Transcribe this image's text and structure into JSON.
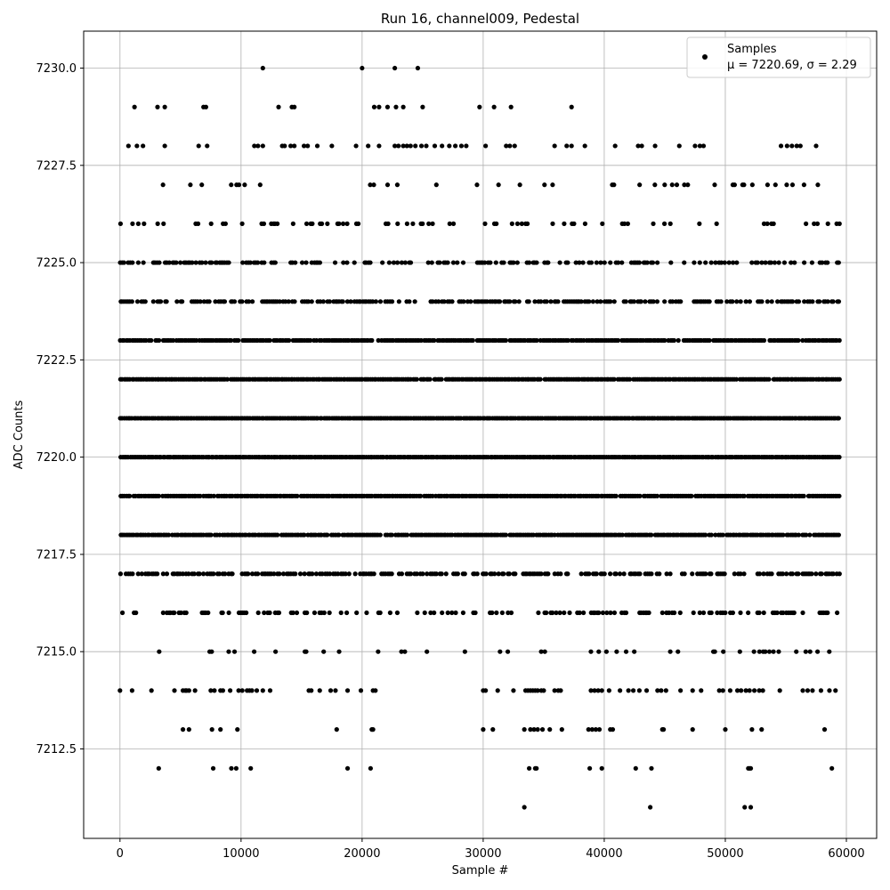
{
  "chart_data": {
    "type": "scatter",
    "title": "Run 16, channel009, Pedestal",
    "xlabel": "Sample #",
    "ylabel": "ADC Counts",
    "xlim": [
      -3000,
      62500
    ],
    "ylim": [
      7210.2,
      7230.95
    ],
    "x_ticks": [
      0,
      10000,
      20000,
      30000,
      40000,
      50000,
      60000
    ],
    "y_ticks": [
      7212.5,
      7215.0,
      7217.5,
      7220.0,
      7222.5,
      7225.0,
      7227.5,
      7230.0
    ],
    "grid": true,
    "legend_position": "top-right",
    "marker_color": "#000000",
    "series": [
      {
        "name": "Samples",
        "x_range": [
          0,
          59500
        ],
        "bands": [
          {
            "y": 7211,
            "points": [
              33400,
              43800,
              51600,
              52100
            ]
          },
          {
            "y": 7212,
            "points": [
              3200,
              7700,
              9200,
              9600,
              10800,
              18800,
              20700,
              33800,
              34300,
              34400,
              38800,
              39800,
              42600,
              43900,
              51900,
              52000,
              52100,
              58800
            ]
          },
          {
            "y": 7213,
            "points": [
              5200,
              5700,
              7600,
              8300,
              9700,
              17900,
              20800,
              20900,
              30000,
              30800,
              33400,
              33900,
              34200,
              34500,
              34900,
              35500,
              36500,
              38700,
              39000,
              39300,
              39600,
              40500,
              40700,
              44800,
              44900,
              47300,
              50000,
              52200,
              53000,
              58200
            ]
          },
          {
            "y": 7214,
            "points": [
              0,
              1000,
              2600,
              4500,
              5200,
              5400,
              5500,
              5700,
              6200,
              7500,
              7800,
              8300,
              8500,
              9100,
              9800,
              10100,
              10500,
              10700,
              10900,
              11300,
              11800,
              12400,
              15600,
              15800,
              16500,
              17400,
              17800,
              18800,
              19900,
              20900,
              21100,
              30000,
              30200,
              31200,
              32500,
              33500,
              33700,
              33900,
              34100,
              34300,
              34500,
              34800,
              35000,
              35900,
              36200,
              36400,
              38900,
              39200,
              39500,
              39800,
              40400,
              41300,
              42000,
              42400,
              42900,
              43500,
              44400,
              44700,
              45100,
              46300,
              47300,
              48000,
              49500,
              49800,
              50400,
              51000,
              51300,
              51700,
              52000,
              52400,
              52800,
              53100,
              54500,
              56400,
              56800,
              57200,
              57900,
              58600,
              59100
            ]
          }
        ],
        "dense_levels": [
          {
            "y": 7215,
            "density": 0.12
          },
          {
            "y": 7216,
            "density": 0.35
          },
          {
            "y": 7217,
            "density": 0.62
          },
          {
            "y": 7218,
            "density": 0.92
          },
          {
            "y": 7219,
            "density": 0.97
          },
          {
            "y": 7220,
            "density": 1.0
          },
          {
            "y": 7221,
            "density": 1.0
          },
          {
            "y": 7222,
            "density": 0.97
          },
          {
            "y": 7223,
            "density": 0.92
          },
          {
            "y": 7224,
            "density": 0.6
          },
          {
            "y": 7225,
            "density": 0.4
          },
          {
            "y": 7226,
            "density": 0.22
          },
          {
            "y": 7227,
            "density": 0.1
          }
        ],
        "outliers": [
          {
            "x": 700,
            "y": 7228
          },
          {
            "x": 1400,
            "y": 7228
          },
          {
            "x": 1900,
            "y": 7228
          },
          {
            "x": 3700,
            "y": 7228
          },
          {
            "x": 6500,
            "y": 7228
          },
          {
            "x": 7200,
            "y": 7228
          },
          {
            "x": 11100,
            "y": 7228
          },
          {
            "x": 11400,
            "y": 7228
          },
          {
            "x": 11800,
            "y": 7228
          },
          {
            "x": 13400,
            "y": 7228
          },
          {
            "x": 13600,
            "y": 7228
          },
          {
            "x": 14100,
            "y": 7228
          },
          {
            "x": 14400,
            "y": 7228
          },
          {
            "x": 15200,
            "y": 7228
          },
          {
            "x": 15500,
            "y": 7228
          },
          {
            "x": 16300,
            "y": 7228
          },
          {
            "x": 17500,
            "y": 7228
          },
          {
            "x": 19500,
            "y": 7228
          },
          {
            "x": 20500,
            "y": 7228
          },
          {
            "x": 21400,
            "y": 7228
          },
          {
            "x": 22700,
            "y": 7228
          },
          {
            "x": 23000,
            "y": 7228
          },
          {
            "x": 23400,
            "y": 7228
          },
          {
            "x": 23700,
            "y": 7228
          },
          {
            "x": 24000,
            "y": 7228
          },
          {
            "x": 24400,
            "y": 7228
          },
          {
            "x": 24900,
            "y": 7228
          },
          {
            "x": 25300,
            "y": 7228
          },
          {
            "x": 26000,
            "y": 7228
          },
          {
            "x": 26600,
            "y": 7228
          },
          {
            "x": 27200,
            "y": 7228
          },
          {
            "x": 27700,
            "y": 7228
          },
          {
            "x": 28200,
            "y": 7228
          },
          {
            "x": 28600,
            "y": 7228
          },
          {
            "x": 30200,
            "y": 7228
          },
          {
            "x": 31900,
            "y": 7228
          },
          {
            "x": 32200,
            "y": 7228
          },
          {
            "x": 32600,
            "y": 7228
          },
          {
            "x": 35900,
            "y": 7228
          },
          {
            "x": 36900,
            "y": 7228
          },
          {
            "x": 37300,
            "y": 7228
          },
          {
            "x": 38400,
            "y": 7228
          },
          {
            "x": 40900,
            "y": 7228
          },
          {
            "x": 42800,
            "y": 7228
          },
          {
            "x": 43100,
            "y": 7228
          },
          {
            "x": 44200,
            "y": 7228
          },
          {
            "x": 46200,
            "y": 7228
          },
          {
            "x": 47500,
            "y": 7228
          },
          {
            "x": 47900,
            "y": 7228
          },
          {
            "x": 48200,
            "y": 7228
          },
          {
            "x": 54600,
            "y": 7228
          },
          {
            "x": 55100,
            "y": 7228
          },
          {
            "x": 55500,
            "y": 7228
          },
          {
            "x": 55900,
            "y": 7228
          },
          {
            "x": 56200,
            "y": 7228
          },
          {
            "x": 57500,
            "y": 7228
          },
          {
            "x": 1200,
            "y": 7229
          },
          {
            "x": 3100,
            "y": 7229
          },
          {
            "x": 3700,
            "y": 7229
          },
          {
            "x": 6900,
            "y": 7229
          },
          {
            "x": 7100,
            "y": 7229
          },
          {
            "x": 13100,
            "y": 7229
          },
          {
            "x": 14200,
            "y": 7229
          },
          {
            "x": 14400,
            "y": 7229
          },
          {
            "x": 21000,
            "y": 7229
          },
          {
            "x": 21400,
            "y": 7229
          },
          {
            "x": 22100,
            "y": 7229
          },
          {
            "x": 22800,
            "y": 7229
          },
          {
            "x": 23400,
            "y": 7229
          },
          {
            "x": 25000,
            "y": 7229
          },
          {
            "x": 29700,
            "y": 7229
          },
          {
            "x": 30900,
            "y": 7229
          },
          {
            "x": 32300,
            "y": 7229
          },
          {
            "x": 37300,
            "y": 7229
          },
          {
            "x": 11800,
            "y": 7230
          },
          {
            "x": 20000,
            "y": 7230
          },
          {
            "x": 22700,
            "y": 7230
          },
          {
            "x": 24600,
            "y": 7230
          }
        ]
      }
    ],
    "legend": {
      "series_label": "Samples",
      "stats_label": "μ = 7220.69, σ = 2.29"
    }
  }
}
